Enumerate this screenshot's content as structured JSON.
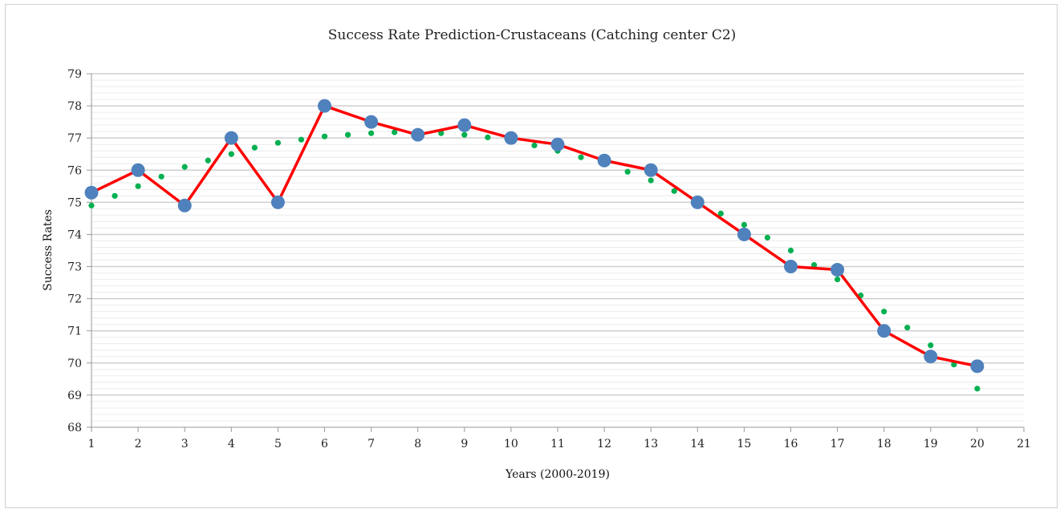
{
  "chart_data": {
    "type": "line",
    "title": "Success Rate Prediction-Crustaceans (Catching center C2)",
    "xlabel": "Years (2000-2019)",
    "ylabel": "Success Rates",
    "xlim": [
      1,
      21
    ],
    "ylim": [
      68,
      79
    ],
    "x_ticks": [
      "1",
      "2",
      "3",
      "4",
      "5",
      "6",
      "7",
      "8",
      "9",
      "10",
      "11",
      "12",
      "13",
      "14",
      "15",
      "16",
      "17",
      "18",
      "19",
      "20",
      "21"
    ],
    "y_ticks": [
      "68",
      "69",
      "70",
      "71",
      "72",
      "73",
      "74",
      "75",
      "76",
      "77",
      "78",
      "79"
    ],
    "grid": true,
    "legend": "none",
    "series": [
      {
        "style": "solid-line-with-markers",
        "line_color": "#ff0000",
        "marker_color": "#4f81bd",
        "x": [
          1,
          2,
          3,
          4,
          5,
          6,
          7,
          8,
          9,
          10,
          11,
          12,
          13,
          14,
          15,
          16,
          17,
          18,
          19,
          20
        ],
        "y": [
          75.3,
          76.0,
          74.9,
          77.0,
          75.0,
          78.0,
          77.5,
          77.1,
          77.4,
          77.0,
          76.8,
          76.3,
          76.0,
          75.0,
          74.0,
          73.0,
          72.9,
          71.0,
          70.2,
          69.9
        ]
      },
      {
        "style": "dotted-trendline",
        "line_color": "#00b050",
        "x": [
          1,
          1.5,
          2,
          2.5,
          3,
          3.5,
          4,
          4.5,
          5,
          5.5,
          6,
          6.5,
          7,
          7.5,
          8,
          8.5,
          9,
          9.5,
          10,
          10.5,
          11,
          11.5,
          12,
          12.5,
          13,
          13.5,
          14,
          14.5,
          15,
          15.5,
          16,
          16.5,
          17,
          17.5,
          18,
          18.5,
          19,
          19.5,
          20
        ],
        "y": [
          74.9,
          75.2,
          75.5,
          75.8,
          76.1,
          76.3,
          76.5,
          76.7,
          76.85,
          76.95,
          77.05,
          77.1,
          77.15,
          77.18,
          77.18,
          77.15,
          77.1,
          77.02,
          76.92,
          76.77,
          76.6,
          76.4,
          76.2,
          75.95,
          75.68,
          75.35,
          75.0,
          74.65,
          74.3,
          73.9,
          73.5,
          73.05,
          72.6,
          72.1,
          71.6,
          71.1,
          70.55,
          69.95,
          69.2
        ]
      }
    ]
  }
}
